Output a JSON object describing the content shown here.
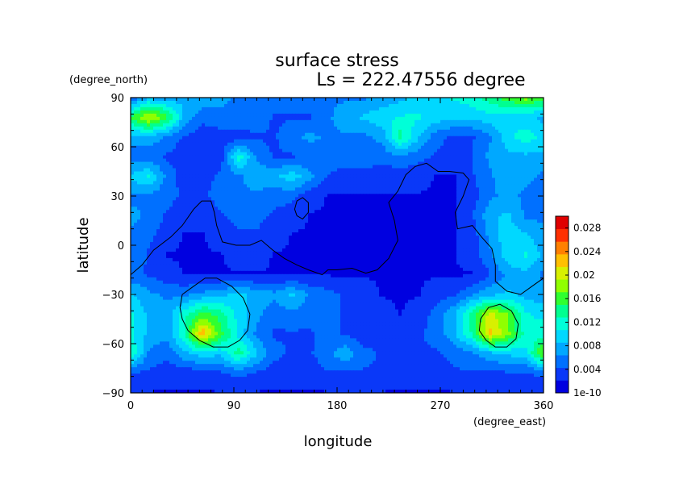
{
  "chart_data": {
    "type": "heatmap",
    "title": "surface stress",
    "subtitle": "Ls = 222.47556 degree",
    "xlabel": "longitude",
    "ylabel": "latitude",
    "x_units": "(degree_east)",
    "y_units": "(degree_north)",
    "xlim": [
      0,
      360
    ],
    "ylim": [
      -90,
      90
    ],
    "x_ticks": [
      "0",
      "90",
      "180",
      "270",
      "360"
    ],
    "y_ticks": [
      "90",
      "60",
      "30",
      "0",
      "−30",
      "−60",
      "−90"
    ],
    "x_tick_values": [
      0,
      90,
      180,
      270,
      360
    ],
    "y_tick_values": [
      90,
      60,
      30,
      0,
      -30,
      -60,
      -90
    ],
    "colorbar": {
      "labels": [
        "0.028",
        "0.024",
        "0.02",
        "0.016",
        "0.012",
        "0.008",
        "0.004",
        "1e-10"
      ],
      "levels": [
        0.028,
        0.024,
        0.02,
        0.016,
        0.012,
        0.008,
        0.004,
        0
      ],
      "min": 0,
      "max": 0.03,
      "colors": [
        "#0000e0",
        "#0a38f8",
        "#0070ff",
        "#00a8ff",
        "#00d8ff",
        "#00ffd8",
        "#00ff90",
        "#30ff30",
        "#90ff00",
        "#d8f000",
        "#ffc000",
        "#ff8000",
        "#ff3000",
        "#e00000"
      ]
    },
    "grid": [
      [
        0.004,
        0.008,
        0.007,
        0.008,
        0.008,
        0.007,
        0.006,
        0.006,
        0.006,
        0.006,
        0.006,
        0.006,
        0.006,
        0.006,
        0.007,
        0.008,
        0.009,
        0.01,
        0.011,
        0.012,
        0.014,
        0.016,
        0.018,
        0.016
      ],
      [
        0.015,
        0.02,
        0.016,
        0.008,
        0.005,
        0.006,
        0.006,
        0.006,
        0.004,
        0.004,
        0.004,
        0.006,
        0.008,
        0.009,
        0.01,
        0.011,
        0.011,
        0.01,
        0.009,
        0.009,
        0.01,
        0.01,
        0.009,
        0.008
      ],
      [
        0.008,
        0.008,
        0.006,
        0.004,
        0.003,
        0.003,
        0.003,
        0.004,
        0.004,
        0.006,
        0.007,
        0.006,
        0.006,
        0.006,
        0.007,
        0.014,
        0.009,
        0.005,
        0.004,
        0.004,
        0.006,
        0.01,
        0.012,
        0.01
      ],
      [
        0.005,
        0.005,
        0.004,
        0.003,
        0.003,
        0.003,
        0.012,
        0.006,
        0.004,
        0.004,
        0.005,
        0.006,
        0.006,
        0.006,
        0.005,
        0.006,
        0.005,
        0.004,
        0.003,
        0.004,
        0.007,
        0.008,
        0.008,
        0.008
      ],
      [
        0.009,
        0.011,
        0.006,
        0.003,
        0.003,
        0.005,
        0.006,
        0.008,
        0.008,
        0.01,
        0.007,
        0.004,
        0.003,
        0.003,
        0.003,
        0.003,
        0.003,
        0.002,
        0.002,
        0.004,
        0.006,
        0.008,
        0.007,
        0.006
      ],
      [
        0.006,
        0.006,
        0.005,
        0.004,
        0.004,
        0.005,
        0.006,
        0.006,
        0.005,
        0.005,
        0.003,
        0.002,
        0.002,
        0.002,
        0.002,
        0.002,
        0.002,
        0.002,
        0.002,
        0.003,
        0.006,
        0.007,
        0.006,
        0.005
      ],
      [
        0.007,
        0.006,
        0.004,
        0.003,
        0.003,
        0.004,
        0.005,
        0.005,
        0.004,
        0.003,
        0.002,
        0.002,
        0.002,
        0.002,
        0.002,
        0.002,
        0.002,
        0.002,
        0.002,
        0.004,
        0.008,
        0.009,
        0.006,
        0.006
      ],
      [
        0.006,
        0.005,
        0.003,
        0.002,
        0.002,
        0.003,
        0.004,
        0.004,
        0.003,
        0.002,
        0.002,
        0.002,
        0.002,
        0.002,
        0.002,
        0.002,
        0.002,
        0.002,
        0.002,
        0.003,
        0.007,
        0.01,
        0.009,
        0.007
      ],
      [
        0.006,
        0.004,
        0.002,
        0.002,
        0.002,
        0.002,
        0.003,
        0.003,
        0.002,
        0.002,
        0.002,
        0.002,
        0.002,
        0.002,
        0.002,
        0.002,
        0.002,
        0.002,
        0.002,
        0.003,
        0.006,
        0.01,
        0.011,
        0.008
      ],
      [
        0.005,
        0.004,
        0.003,
        0.002,
        0.002,
        0.002,
        0.002,
        0.002,
        0.002,
        0.002,
        0.002,
        0.002,
        0.002,
        0.002,
        0.002,
        0.002,
        0.002,
        0.002,
        0.002,
        0.002,
        0.004,
        0.007,
        0.008,
        0.006
      ],
      [
        0.009,
        0.007,
        0.006,
        0.006,
        0.007,
        0.008,
        0.009,
        0.008,
        0.007,
        0.009,
        0.006,
        0.005,
        0.004,
        0.003,
        0.002,
        0.002,
        0.002,
        0.003,
        0.004,
        0.006,
        0.008,
        0.009,
        0.008,
        0.007
      ],
      [
        0.011,
        0.008,
        0.007,
        0.012,
        0.016,
        0.014,
        0.01,
        0.007,
        0.005,
        0.006,
        0.005,
        0.005,
        0.004,
        0.003,
        0.003,
        0.002,
        0.003,
        0.005,
        0.008,
        0.014,
        0.02,
        0.017,
        0.011,
        0.01
      ],
      [
        0.011,
        0.008,
        0.007,
        0.013,
        0.023,
        0.016,
        0.01,
        0.006,
        0.004,
        0.004,
        0.004,
        0.005,
        0.004,
        0.003,
        0.003,
        0.003,
        0.004,
        0.005,
        0.008,
        0.013,
        0.022,
        0.018,
        0.012,
        0.012
      ],
      [
        0.013,
        0.006,
        0.005,
        0.008,
        0.01,
        0.009,
        0.014,
        0.009,
        0.005,
        0.004,
        0.004,
        0.006,
        0.008,
        0.005,
        0.004,
        0.004,
        0.004,
        0.004,
        0.005,
        0.006,
        0.008,
        0.009,
        0.01,
        0.018
      ],
      [
        0.004,
        0.004,
        0.003,
        0.003,
        0.003,
        0.004,
        0.005,
        0.004,
        0.003,
        0.003,
        0.003,
        0.004,
        0.004,
        0.004,
        0.004,
        0.003,
        0.003,
        0.003,
        0.004,
        0.004,
        0.004,
        0.004,
        0.004,
        0.005
      ],
      [
        0.002,
        0.002,
        0.002,
        0.002,
        0.002,
        0.002,
        0.002,
        0.002,
        0.002,
        0.002,
        0.002,
        0.002,
        0.002,
        0.002,
        0.002,
        0.002,
        0.002,
        0.002,
        0.002,
        0.002,
        0.002,
        0.002,
        0.002,
        0.002
      ]
    ],
    "grid_rows_lat_north_to_south": true,
    "contours": [
      [
        [
          0,
          -18
        ],
        [
          10,
          -12
        ],
        [
          20,
          -3
        ],
        [
          35,
          5
        ],
        [
          45,
          12
        ],
        [
          55,
          22
        ],
        [
          62,
          27
        ],
        [
          70,
          27
        ],
        [
          73,
          20
        ],
        [
          75,
          12
        ],
        [
          80,
          2
        ],
        [
          92,
          0
        ],
        [
          104,
          0
        ],
        [
          114,
          3
        ],
        [
          124,
          -3
        ],
        [
          134,
          -8
        ],
        [
          145,
          -12
        ],
        [
          155,
          -15
        ],
        [
          167,
          -18
        ],
        [
          172,
          -15
        ],
        [
          180,
          -15
        ],
        [
          193,
          -14
        ],
        [
          205,
          -17
        ],
        [
          215,
          -15
        ],
        [
          225,
          -8
        ],
        [
          233,
          3
        ],
        [
          230,
          15
        ],
        [
          225,
          26
        ],
        [
          233,
          33
        ],
        [
          240,
          43
        ],
        [
          248,
          48
        ],
        [
          258,
          50
        ],
        [
          268,
          45
        ],
        [
          278,
          45
        ],
        [
          290,
          44
        ],
        [
          295,
          40
        ],
        [
          290,
          30
        ],
        [
          283,
          20
        ],
        [
          285,
          10
        ],
        [
          298,
          12
        ],
        [
          306,
          5
        ],
        [
          315,
          -2
        ],
        [
          318,
          -12
        ],
        [
          318,
          -22
        ],
        [
          328,
          -28
        ],
        [
          340,
          -30
        ],
        [
          350,
          -25
        ],
        [
          360,
          -20
        ]
      ],
      [
        [
          145,
          18
        ],
        [
          150,
          16
        ],
        [
          155,
          20
        ],
        [
          155,
          26
        ],
        [
          150,
          29
        ],
        [
          145,
          27
        ],
        [
          143,
          22
        ],
        [
          145,
          18
        ]
      ],
      [
        [
          45,
          -30
        ],
        [
          55,
          -25
        ],
        [
          65,
          -20
        ],
        [
          75,
          -20
        ],
        [
          88,
          -25
        ],
        [
          98,
          -32
        ],
        [
          104,
          -42
        ],
        [
          102,
          -52
        ],
        [
          95,
          -58
        ],
        [
          85,
          -62
        ],
        [
          72,
          -62
        ],
        [
          60,
          -58
        ],
        [
          50,
          -52
        ],
        [
          45,
          -45
        ],
        [
          43,
          -38
        ],
        [
          45,
          -30
        ]
      ],
      [
        [
          305,
          -45
        ],
        [
          312,
          -38
        ],
        [
          322,
          -36
        ],
        [
          332,
          -40
        ],
        [
          338,
          -48
        ],
        [
          336,
          -57
        ],
        [
          328,
          -62
        ],
        [
          318,
          -62
        ],
        [
          310,
          -58
        ],
        [
          304,
          -52
        ],
        [
          305,
          -45
        ]
      ]
    ]
  }
}
